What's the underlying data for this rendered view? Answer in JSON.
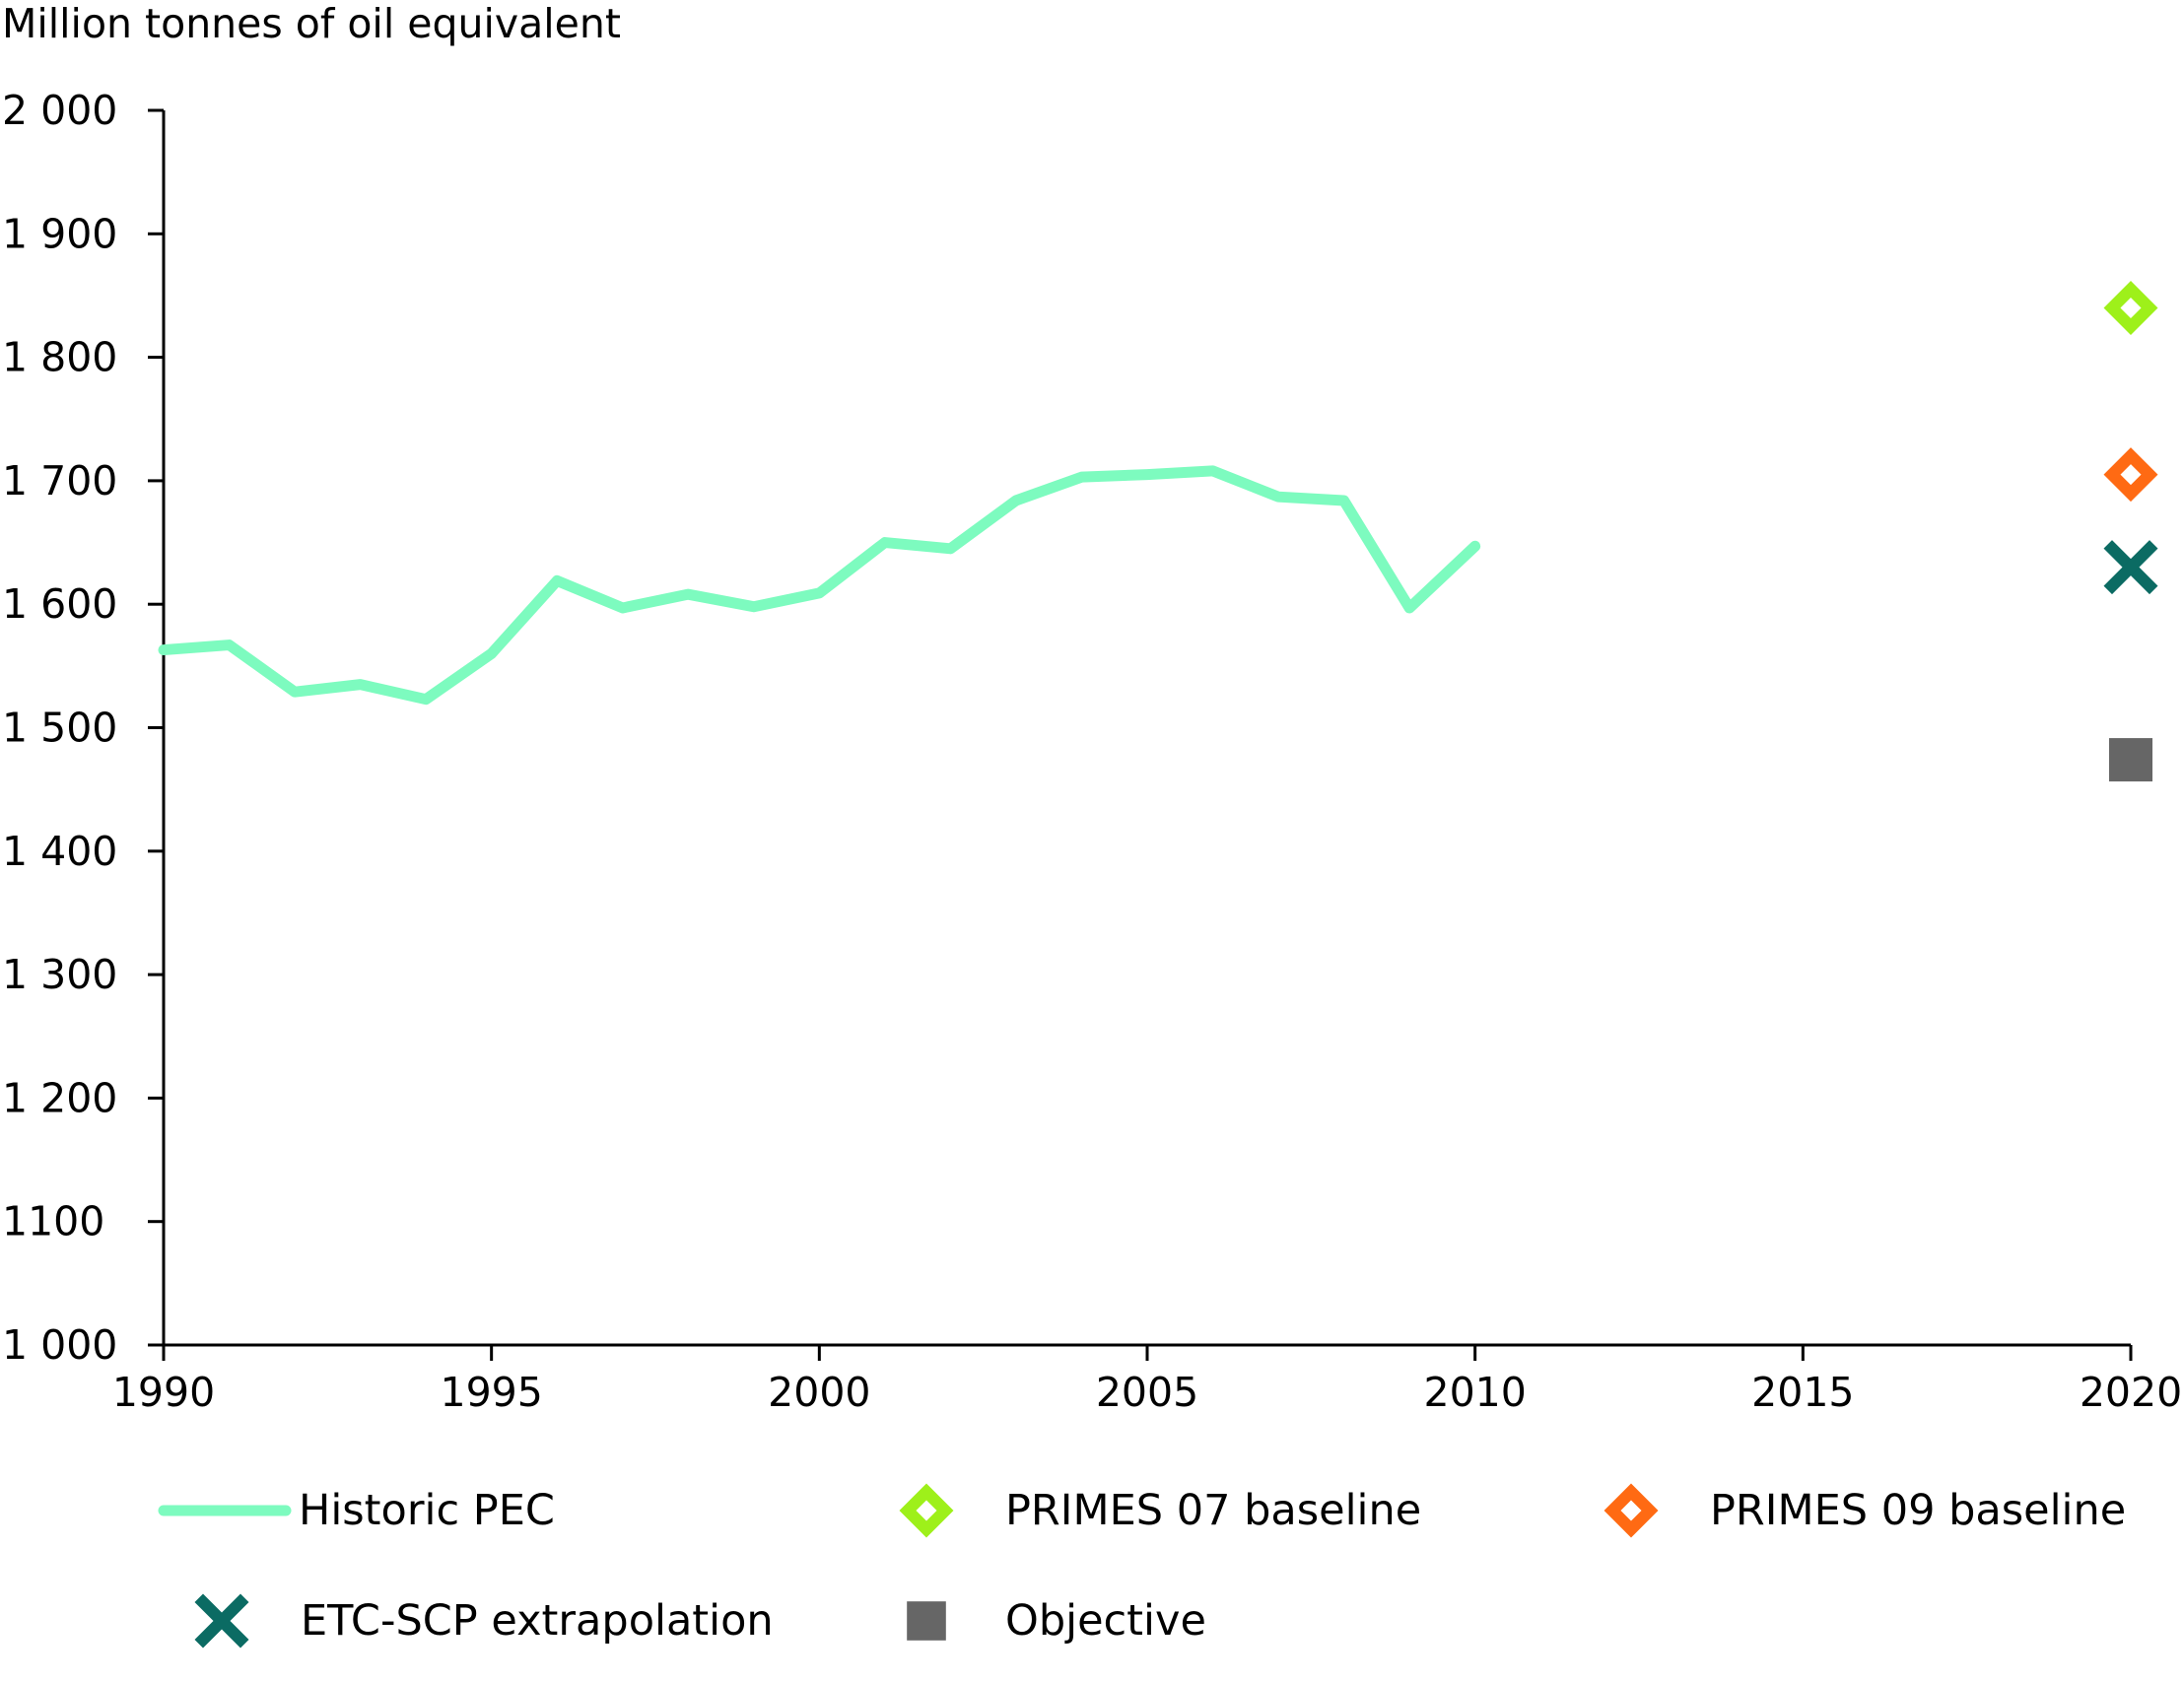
{
  "chart_data": {
    "type": "line",
    "ylabel": "Million tonnes of oil equivalent",
    "xlabel": "",
    "xlim": [
      1990,
      2020
    ],
    "ylim": [
      1000,
      2000
    ],
    "x_ticks": [
      "1990",
      "1995",
      "2000",
      "2005",
      "2010",
      "2015",
      "2020"
    ],
    "y_ticks": [
      "1 000",
      "1100",
      "1  200",
      "1 300",
      "1 400",
      "1 500",
      "1 600",
      "1 700",
      "1 800",
      "1 900",
      "2 000"
    ],
    "grid": false,
    "legend_position": "bottom",
    "series": [
      {
        "name": "Historic PEC",
        "kind": "line",
        "color": "#7dfbbf",
        "x": [
          1990,
          1991,
          1992,
          1993,
          1994,
          1995,
          1996,
          1997,
          1998,
          1999,
          2000,
          2001,
          2002,
          2003,
          2004,
          2005,
          2006,
          2007,
          2008,
          2009,
          2010
        ],
        "y": [
          1563,
          1567,
          1529,
          1535,
          1523,
          1560,
          1619,
          1597,
          1608,
          1598,
          1609,
          1650,
          1645,
          1684,
          1703,
          1705,
          1708,
          1687,
          1684,
          1597,
          1647
        ]
      },
      {
        "name": "PRIMES 07 baseline",
        "kind": "marker",
        "marker": "diamond",
        "color": "#9ef01a",
        "x": [
          2020
        ],
        "y": [
          1840
        ]
      },
      {
        "name": "PRIMES 09 baseline",
        "kind": "marker",
        "marker": "diamond",
        "color": "#ff6a13",
        "x": [
          2020
        ],
        "y": [
          1705
        ]
      },
      {
        "name": "ETC-SCP extrapolation",
        "kind": "marker",
        "marker": "cross",
        "color": "#0b6b63",
        "x": [
          2020
        ],
        "y": [
          1630
        ]
      },
      {
        "name": "Objective",
        "kind": "marker",
        "marker": "square",
        "color": "#666666",
        "x": [
          2020
        ],
        "y": [
          1474
        ]
      }
    ]
  }
}
